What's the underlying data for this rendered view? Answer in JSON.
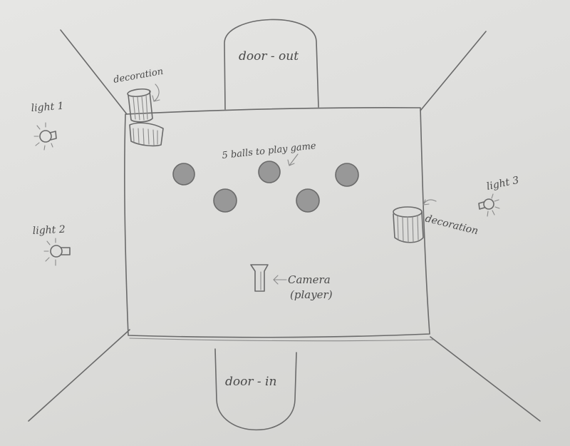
{
  "labels": {
    "door_out": "door - out",
    "door_in": "door - in",
    "balls": "5 balls to play game",
    "camera": "Camera",
    "player": "(player)",
    "decoration_top": "decoration",
    "decoration_right": "decoration",
    "light1": "light 1",
    "light2": "light 2",
    "light3": "light 3"
  },
  "colors": {
    "pencil": "#6a6a6a",
    "paper": "#e2e2e0"
  },
  "icons": [
    "light-bulb-icon",
    "camera-icon",
    "ball-icon",
    "cylinder-icon",
    "arrow-icon"
  ]
}
